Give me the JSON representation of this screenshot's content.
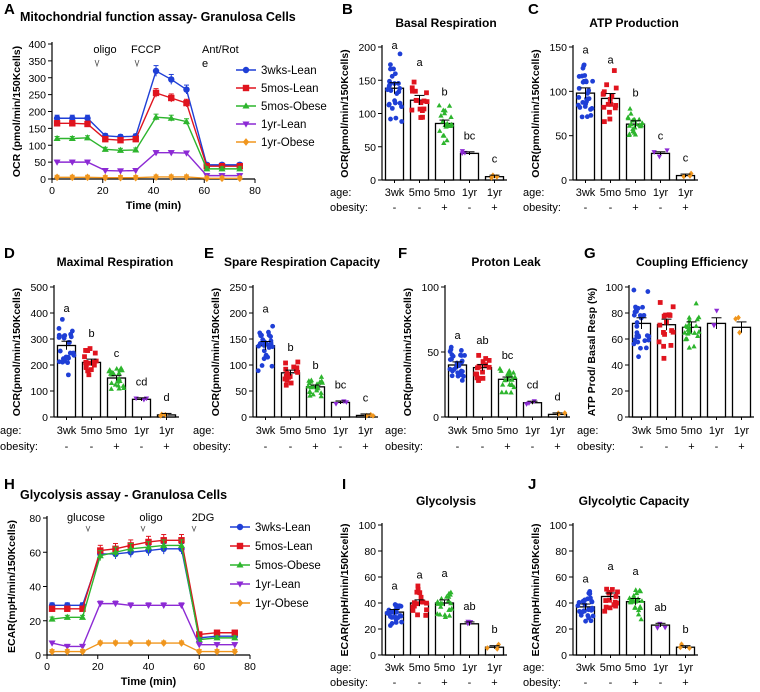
{
  "colors": {
    "g1": "#1f3fd6",
    "g2": "#e0141e",
    "g3": "#2db52d",
    "g4": "#8c2ad4",
    "g5": "#f0961e"
  },
  "groups": [
    "3wks-Lean",
    "5mos-Lean",
    "5mos-Obese",
    "1yr-Lean",
    "1yr-Obese"
  ],
  "bar_axis_labels": {
    "age_label": "age:",
    "obesity_label": "obesity:",
    "ages": [
      "3wk",
      "5mo",
      "5mo",
      "1yr",
      "1yr"
    ],
    "obesity": [
      "-",
      "-",
      "+",
      "-",
      "+"
    ]
  },
  "chart_data": [
    {
      "id": "A",
      "type": "line",
      "letter": "A",
      "title": "Mitochondrial function assay- Granulosa Cells",
      "xlabel": "Time (min)",
      "ylabel": "OCR (pmol/min/150Kcells)",
      "xlim": [
        0,
        80
      ],
      "ylim": [
        0,
        400
      ],
      "xticks": [
        0,
        20,
        40,
        60,
        80
      ],
      "yticks": [
        0,
        50,
        100,
        150,
        200,
        250,
        300,
        350,
        400
      ],
      "annotations": [
        "oligo",
        "FCCP",
        "Ant/Rot",
        "e"
      ],
      "x": [
        2,
        8,
        14,
        21,
        27,
        33,
        41,
        47,
        53,
        61,
        67,
        74
      ],
      "series": [
        {
          "name": "3wks-Lean",
          "values": [
            180,
            180,
            180,
            128,
            125,
            127,
            320,
            295,
            265,
            42,
            42,
            42
          ]
        },
        {
          "name": "5mos-Lean",
          "values": [
            165,
            165,
            163,
            118,
            115,
            118,
            255,
            240,
            225,
            38,
            38,
            38
          ]
        },
        {
          "name": "5mos-Obese",
          "values": [
            120,
            120,
            122,
            88,
            85,
            86,
            183,
            180,
            170,
            30,
            30,
            30
          ]
        },
        {
          "name": "1yr-Lean",
          "values": [
            50,
            50,
            50,
            25,
            24,
            25,
            78,
            78,
            77,
            10,
            10,
            10
          ]
        },
        {
          "name": "1yr-Obese",
          "values": [
            5,
            5,
            5,
            4,
            4,
            4,
            6,
            6,
            6,
            2,
            2,
            2
          ]
        }
      ]
    },
    {
      "id": "B",
      "type": "bar",
      "letter": "B",
      "title": "Basal Respiration",
      "ylabel": "OCR(pmol/min/150Kcells)",
      "ylim": [
        0,
        200
      ],
      "yticks": [
        0,
        50,
        100,
        150,
        200
      ],
      "values": [
        138,
        120,
        85,
        40,
        5
      ],
      "sig": [
        "a",
        "a",
        "b",
        "bc",
        "c"
      ]
    },
    {
      "id": "C",
      "type": "bar",
      "letter": "C",
      "title": "ATP Production",
      "ylabel": "OCR(pmol/min/150Kcells)",
      "ylim": [
        0,
        150
      ],
      "yticks": [
        0,
        50,
        100,
        150
      ],
      "values": [
        98,
        92,
        63,
        30,
        5
      ],
      "sig": [
        "a",
        "a",
        "b",
        "c",
        "c"
      ]
    },
    {
      "id": "D",
      "type": "bar",
      "letter": "D",
      "title": "Maximal Respiration",
      "ylabel": "OCR(pmol/min/150Kcells)",
      "ylim": [
        0,
        500
      ],
      "yticks": [
        0,
        100,
        200,
        300,
        400,
        500
      ],
      "values": [
        275,
        210,
        150,
        68,
        8
      ],
      "sig": [
        "a",
        "b",
        "c",
        "cd",
        "d"
      ]
    },
    {
      "id": "E",
      "type": "bar",
      "letter": "E",
      "title": "Spare Respiration Capacity",
      "ylabel": "OCR(pmol/min/150Kcells)",
      "ylim": [
        0,
        250
      ],
      "yticks": [
        0,
        50,
        100,
        150,
        200,
        250
      ],
      "values": [
        137,
        85,
        58,
        28,
        3
      ],
      "sig": [
        "a",
        "b",
        "b",
        "bc",
        "c"
      ]
    },
    {
      "id": "F",
      "type": "bar",
      "letter": "F",
      "title": "Proton Leak",
      "ylabel": "OCR(pmol/min/150Kcells)",
      "ylim": [
        0,
        100
      ],
      "yticks": [
        0,
        50,
        100
      ],
      "values": [
        40,
        38,
        29,
        11,
        2
      ],
      "sig": [
        "a",
        "ab",
        "bc",
        "cd",
        "d"
      ]
    },
    {
      "id": "G",
      "type": "bar",
      "letter": "G",
      "title": "Coupling Efficiency",
      "ylabel": "ATP Prod/ Basal Resp (%)",
      "ylim": [
        0,
        100
      ],
      "yticks": [
        0,
        20,
        40,
        60,
        80,
        100
      ],
      "values": [
        72,
        71,
        69,
        72,
        69
      ],
      "sig": [
        "",
        "",
        "",
        "",
        ""
      ]
    },
    {
      "id": "H",
      "type": "line",
      "letter": "H",
      "title": "Glycolysis assay - Granulosa Cells",
      "xlabel": "Time (min)",
      "ylabel": "ECAR(mpH/min/150Kcells)",
      "xlim": [
        0,
        80
      ],
      "ylim": [
        0,
        80
      ],
      "xticks": [
        0,
        20,
        40,
        60,
        80
      ],
      "yticks": [
        0,
        20,
        40,
        60,
        80
      ],
      "annotations": [
        "glucose",
        "oligo",
        "2DG"
      ],
      "x": [
        2,
        8,
        14,
        21,
        27,
        33,
        40,
        46,
        53,
        60,
        67,
        74
      ],
      "series": [
        {
          "name": "3wks-Lean",
          "values": [
            29,
            29,
            29,
            59,
            59,
            60,
            61,
            62,
            62,
            10,
            11,
            11
          ]
        },
        {
          "name": "5mos-Lean",
          "values": [
            27,
            27,
            27,
            61,
            62,
            64,
            66,
            67,
            67,
            12,
            13,
            13
          ]
        },
        {
          "name": "5mos-Obese",
          "values": [
            21,
            22,
            22,
            58,
            60,
            62,
            63,
            64,
            64,
            9,
            10,
            10
          ]
        },
        {
          "name": "1yr-Lean",
          "values": [
            7,
            5,
            5,
            30,
            30,
            29,
            29,
            29,
            29,
            6,
            6,
            6
          ]
        },
        {
          "name": "1yr-Obese",
          "values": [
            2,
            2,
            2,
            7,
            7,
            7,
            7,
            7,
            7,
            2,
            2,
            2
          ]
        }
      ]
    },
    {
      "id": "I",
      "type": "bar",
      "letter": "I",
      "title": "Glycolysis",
      "ylabel": "ECAR(mpH/min/150Kcells)",
      "ylim": [
        0,
        100
      ],
      "yticks": [
        0,
        20,
        40,
        60,
        80,
        100
      ],
      "values": [
        33,
        40,
        40,
        24,
        6
      ],
      "sig": [
        "a",
        "a",
        "a",
        "ab",
        "b"
      ]
    },
    {
      "id": "J",
      "type": "bar",
      "letter": "J",
      "title": "Glycolytic Capacity",
      "ylabel": "ECAR(mpH/min/150Kcells)",
      "ylim": [
        0,
        100
      ],
      "yticks": [
        0,
        20,
        40,
        60,
        80,
        100
      ],
      "values": [
        37,
        45,
        41,
        23,
        6
      ],
      "sig": [
        "a",
        "a",
        "a",
        "ab",
        "b"
      ]
    }
  ]
}
